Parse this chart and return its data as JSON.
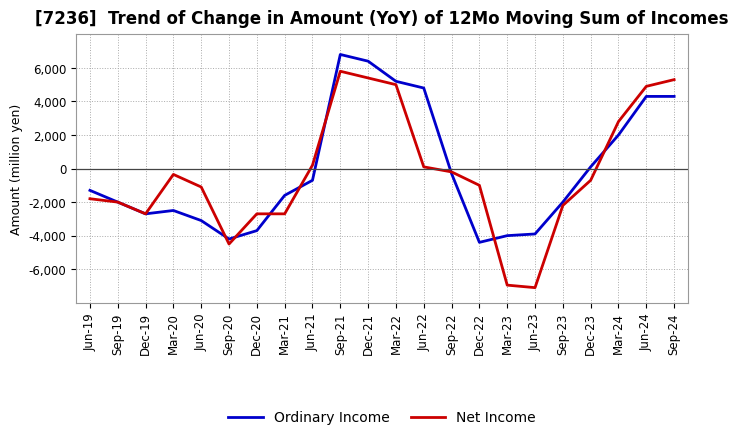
{
  "title": "[7236]  Trend of Change in Amount (YoY) of 12Mo Moving Sum of Incomes",
  "ylabel": "Amount (million yen)",
  "x_labels": [
    "Jun-19",
    "Sep-19",
    "Dec-19",
    "Mar-20",
    "Jun-20",
    "Sep-20",
    "Dec-20",
    "Mar-21",
    "Jun-21",
    "Sep-21",
    "Dec-21",
    "Mar-22",
    "Jun-22",
    "Sep-22",
    "Dec-22",
    "Mar-23",
    "Jun-23",
    "Sep-23",
    "Dec-23",
    "Mar-24",
    "Jun-24",
    "Sep-24"
  ],
  "ordinary_income": [
    -1300,
    -2000,
    -2700,
    -2500,
    -3100,
    -4200,
    -3700,
    -1600,
    -700,
    6800,
    6400,
    5200,
    4800,
    -300,
    -4400,
    -4000,
    -3900,
    -2000,
    100,
    2000,
    4300,
    4300
  ],
  "net_income": [
    -1800,
    -2000,
    -2700,
    -350,
    -1100,
    -4500,
    -2700,
    -2700,
    200,
    5800,
    5400,
    5000,
    100,
    -200,
    -1000,
    -6950,
    -7100,
    -2200,
    -700,
    2800,
    4900,
    5300
  ],
  "ordinary_income_color": "#0000cc",
  "net_income_color": "#cc0000",
  "ylim": [
    -8000,
    8000
  ],
  "yticks": [
    -6000,
    -4000,
    -2000,
    0,
    2000,
    4000,
    6000
  ],
  "background_color": "#ffffff",
  "grid_color": "#aaaaaa",
  "legend_labels": [
    "Ordinary Income",
    "Net Income"
  ],
  "line_width": 2.0,
  "title_fontsize": 12,
  "ylabel_fontsize": 9,
  "tick_fontsize": 8.5
}
